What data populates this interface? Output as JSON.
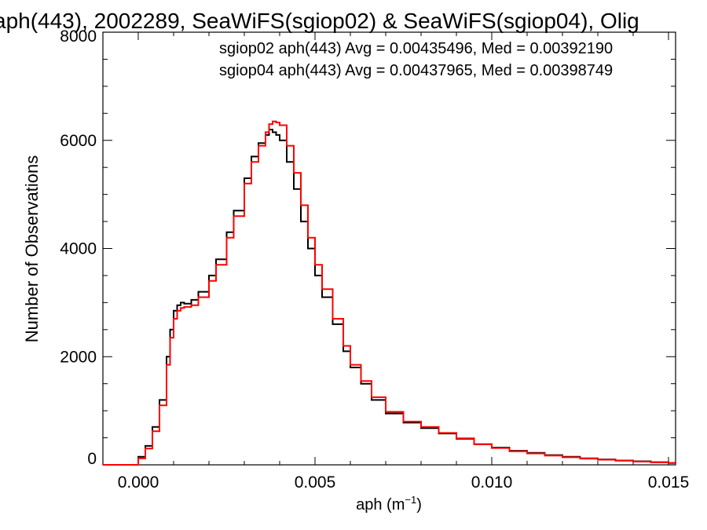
{
  "chart_data": {
    "type": "line",
    "title": "aph(443), 2002289, SeaWiFS(sgiop02) & SeaWiFS(sgiop04), Olig",
    "xlabel_base": "aph (m",
    "xlabel_sup": "−1",
    "xlabel_end": ")",
    "ylabel": "Number of Observations",
    "xlim": [
      -0.001,
      0.0152
    ],
    "ylim": [
      0,
      8000
    ],
    "x_ticks": [
      0.0,
      0.005,
      0.01,
      0.015
    ],
    "x_tick_labels": [
      "0.000",
      "0.005",
      "0.010",
      "0.015"
    ],
    "y_ticks": [
      0,
      2000,
      4000,
      6000,
      8000
    ],
    "y_tick_labels": [
      "0",
      "2000",
      "4000",
      "6000",
      "8000"
    ],
    "annotations": [
      {
        "text": "sgiop02 aph(443) Avg = 0.00435496, Med = 0.00392190",
        "color": "#000000"
      },
      {
        "text": "sgiop04 aph(443) Avg = 0.00437965, Med = 0.00398749",
        "color": "#ff0000"
      }
    ],
    "series": [
      {
        "color": "#000000",
        "x": [
          -0.001,
          -0.0005,
          0.0,
          0.0002,
          0.0004,
          0.0006,
          0.0008,
          0.0009,
          0.001,
          0.0011,
          0.0012,
          0.0013,
          0.0015,
          0.0017,
          0.002,
          0.0022,
          0.0025,
          0.0027,
          0.003,
          0.0032,
          0.0034,
          0.0036,
          0.0037,
          0.0038,
          0.0039,
          0.004,
          0.0042,
          0.0044,
          0.0046,
          0.0048,
          0.005,
          0.0052,
          0.0055,
          0.0058,
          0.006,
          0.0063,
          0.0066,
          0.007,
          0.0075,
          0.008,
          0.0085,
          0.009,
          0.0095,
          0.01,
          0.0105,
          0.011,
          0.0115,
          0.012,
          0.0125,
          0.013,
          0.0135,
          0.014,
          0.0145,
          0.015,
          0.0152
        ],
        "y": [
          0,
          0,
          150,
          350,
          700,
          1200,
          2000,
          2500,
          2850,
          2950,
          3000,
          2980,
          3050,
          3200,
          3500,
          3800,
          4300,
          4700,
          5300,
          5700,
          5950,
          6100,
          6200,
          6150,
          6100,
          6000,
          5600,
          5100,
          4500,
          4000,
          3500,
          3100,
          2600,
          2100,
          1800,
          1500,
          1200,
          950,
          780,
          680,
          580,
          480,
          380,
          320,
          260,
          220,
          180,
          150,
          120,
          100,
          80,
          65,
          50,
          35,
          30
        ]
      },
      {
        "color": "#ff0000",
        "x": [
          -0.001,
          -0.0005,
          0.0,
          0.0002,
          0.0004,
          0.0006,
          0.0008,
          0.0009,
          0.001,
          0.0011,
          0.0012,
          0.0013,
          0.0015,
          0.0017,
          0.002,
          0.0022,
          0.0025,
          0.0027,
          0.003,
          0.0032,
          0.0034,
          0.0036,
          0.0037,
          0.0038,
          0.0039,
          0.004,
          0.0042,
          0.0044,
          0.0046,
          0.0048,
          0.005,
          0.0052,
          0.0055,
          0.0058,
          0.006,
          0.0063,
          0.0066,
          0.007,
          0.0075,
          0.008,
          0.0085,
          0.009,
          0.0095,
          0.01,
          0.0105,
          0.011,
          0.0115,
          0.012,
          0.0125,
          0.013,
          0.0135,
          0.014,
          0.0145,
          0.015,
          0.0152
        ],
        "y": [
          0,
          0,
          120,
          300,
          620,
          1100,
          1850,
          2350,
          2700,
          2850,
          2900,
          2920,
          2950,
          3100,
          3400,
          3700,
          4200,
          4600,
          5200,
          5600,
          5900,
          6150,
          6300,
          6350,
          6330,
          6280,
          5900,
          5400,
          4800,
          4200,
          3700,
          3250,
          2700,
          2200,
          1850,
          1550,
          1250,
          980,
          800,
          700,
          590,
          490,
          380,
          310,
          250,
          210,
          170,
          140,
          115,
          95,
          75,
          60,
          45,
          32,
          28
        ]
      }
    ]
  }
}
